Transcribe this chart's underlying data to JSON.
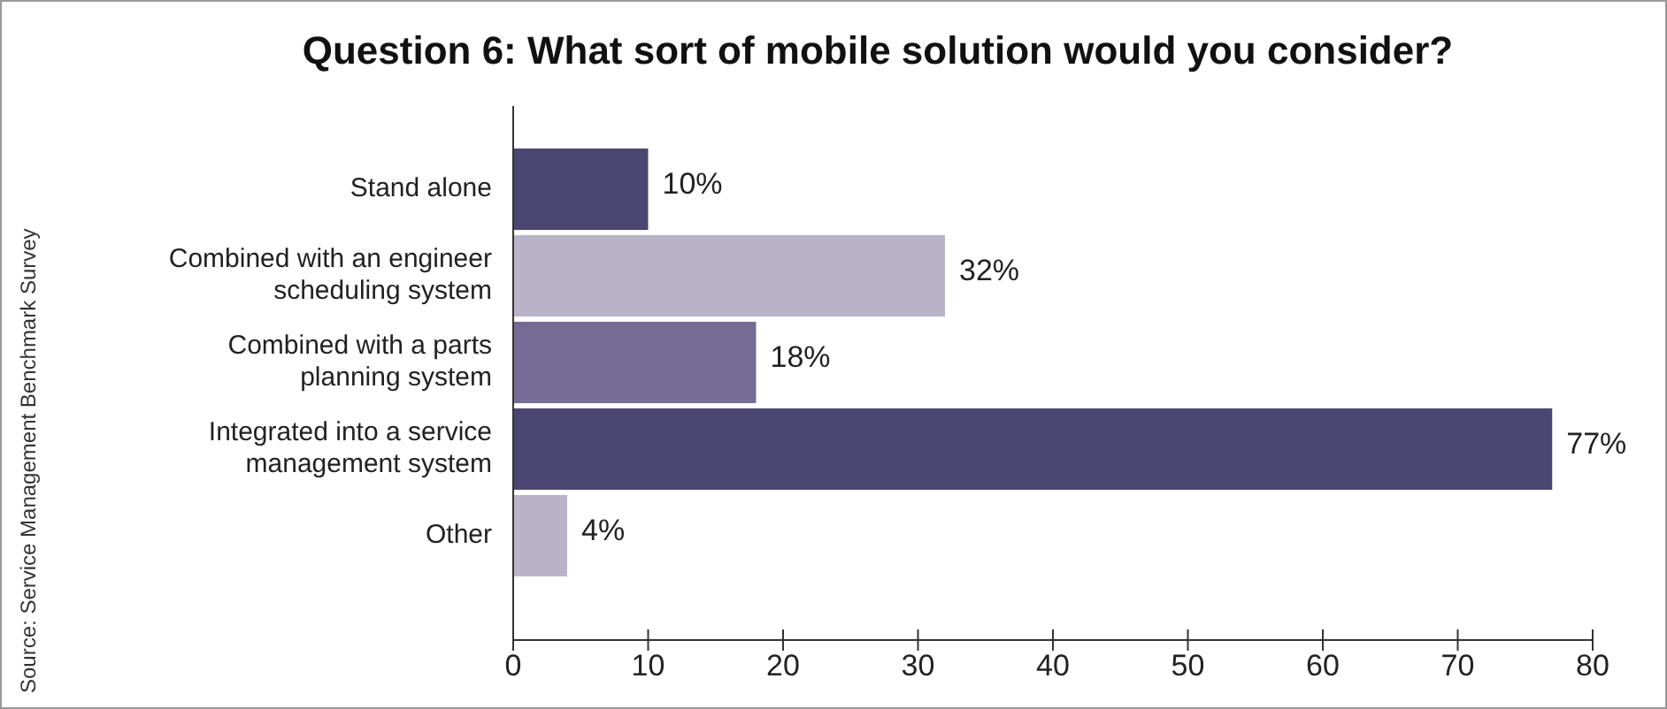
{
  "chart_data": {
    "type": "bar",
    "orientation": "horizontal",
    "title": "Question 6: What sort of mobile solution would you consider?",
    "categories": [
      "Stand alone",
      "Combined with an engineer scheduling system",
      "Combined with a parts planning system",
      "Integrated into a service management system",
      "Other"
    ],
    "values": [
      10,
      32,
      18,
      77,
      4
    ],
    "colors": [
      "#4b4672",
      "#b8b3c9",
      "#756c95",
      "#4b4672",
      "#b8b3c9"
    ],
    "value_labels": [
      "10%",
      "32%",
      "18%",
      "77%",
      "4%"
    ],
    "xlim": [
      0,
      80
    ],
    "xticks": [
      0,
      10,
      20,
      30,
      40,
      50,
      60,
      70,
      80
    ],
    "grid": false,
    "annotations": [
      "Source: Service Management Benchmark Survey"
    ]
  }
}
